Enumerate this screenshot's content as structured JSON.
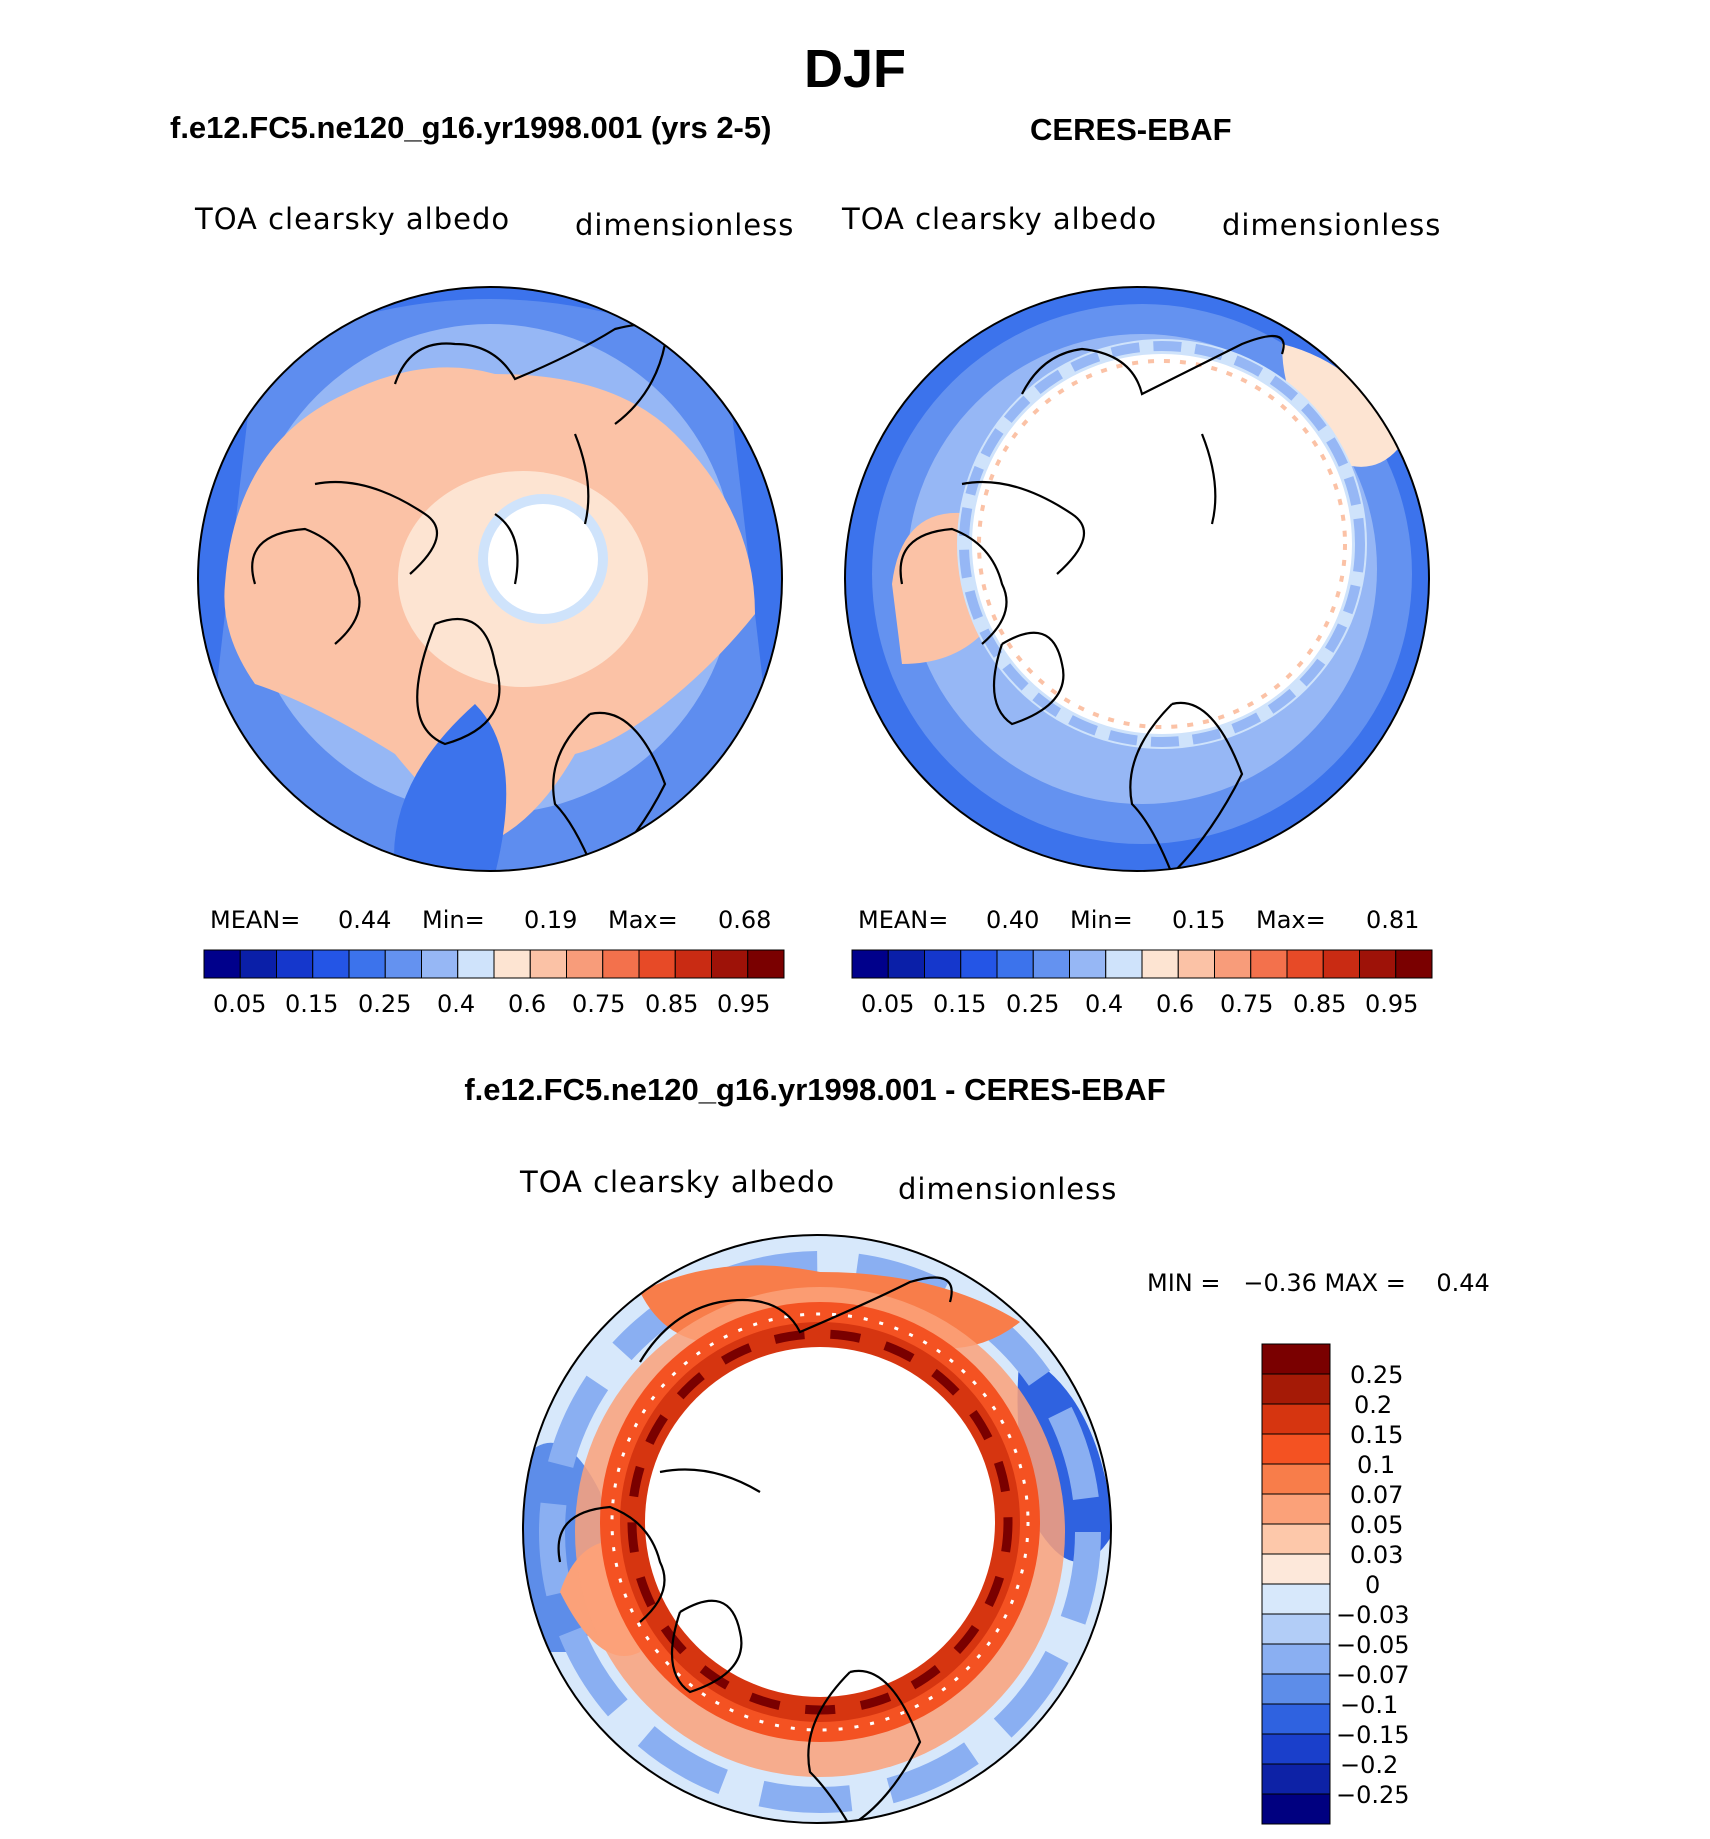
{
  "page": {
    "season_title": "DJF",
    "diff_title": "f.e12.FC5.ne120_g16.yr1998.001 - CERES-EBAF"
  },
  "panels": [
    {
      "title": "f.e12.FC5.ne120_g16.yr1998.001 (yrs 2-5)",
      "variable": "TOA clearsky albedo",
      "units": "dimensionless",
      "mean_label": "MEAN=",
      "mean": "0.44",
      "min_label": "Min=",
      "min": "0.19",
      "max_label": "Max=",
      "max": "0.68",
      "colorbar_ticks": [
        "0.05",
        "0.15",
        "0.25",
        "0.4",
        "0.6",
        "0.75",
        "0.85",
        "0.95"
      ]
    },
    {
      "title": "CERES-EBAF",
      "variable": "TOA clearsky albedo",
      "units": "dimensionless",
      "mean_label": "MEAN=",
      "mean": "0.40",
      "min_label": "Min=",
      "min": "0.15",
      "max_label": "Max=",
      "max": "0.81",
      "colorbar_ticks": [
        "0.05",
        "0.15",
        "0.25",
        "0.4",
        "0.6",
        "0.75",
        "0.85",
        "0.95"
      ]
    }
  ],
  "diff_panel": {
    "variable": "TOA clearsky albedo",
    "units": "dimensionless",
    "minmax_text": "MIN =   −0.36 MAX =    0.44",
    "colorbar_ticks": [
      "0.25",
      "0.2",
      "0.15",
      "0.1",
      "0.07",
      "0.05",
      "0.03",
      "0",
      "−0.03",
      "−0.05",
      "−0.07",
      "−0.1",
      "−0.15",
      "−0.2",
      "−0.25"
    ]
  },
  "colors": {
    "sequential": [
      "#00008b",
      "#0a1fa8",
      "#1537cc",
      "#2455e6",
      "#3c73ec",
      "#6492f0",
      "#96b7f5",
      "#cfe3fb",
      "#fde4d2",
      "#fbc2a6",
      "#f89c7a",
      "#f3714c",
      "#e74a27",
      "#c92b13",
      "#9e1208",
      "#7a0000"
    ],
    "diverging": [
      "#7a0000",
      "#a51a06",
      "#d63510",
      "#f45222",
      "#f87d4a",
      "#fba179",
      "#fdc8aa",
      "#fde8da",
      "#d7e8fb",
      "#b2cdf7",
      "#8aaff2",
      "#5d8de9",
      "#2f62e0",
      "#1a3fcb",
      "#0d22a6",
      "#000080"
    ]
  }
}
